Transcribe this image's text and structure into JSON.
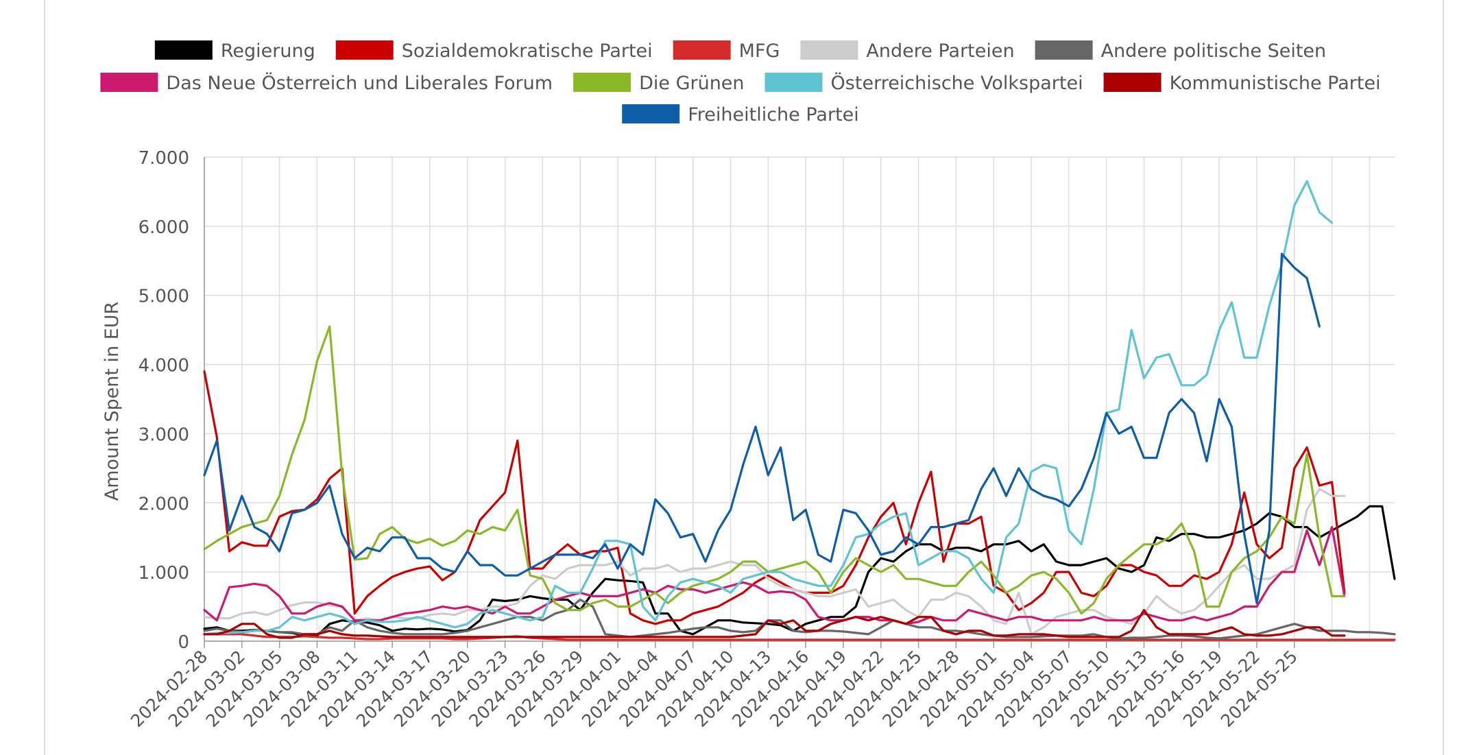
{
  "chart_data": {
    "type": "line",
    "ylabel": "Amount Spent in EUR",
    "ylim": [
      0,
      7000
    ],
    "yticks": [
      0,
      1000,
      2000,
      3000,
      4000,
      5000,
      6000,
      7000
    ],
    "ytick_labels": [
      "0",
      "1.000",
      "2.000",
      "3.000",
      "4.000",
      "5.000",
      "6.000",
      "7.000"
    ],
    "x_start": "2024-02-28",
    "xtick_labels": [
      "2024-02-28",
      "2024-03-02",
      "2024-03-05",
      "2024-03-08",
      "2024-03-11",
      "2024-03-14",
      "2024-03-17",
      "2024-03-20",
      "2024-03-23",
      "2024-03-26",
      "2024-03-29",
      "2024-04-01",
      "2024-04-04",
      "2024-04-07",
      "2024-04-10",
      "2024-04-13",
      "2024-04-16",
      "2024-04-19",
      "2024-04-22",
      "2024-04-25",
      "2024-04-28",
      "2024-05-01",
      "2024-05-04",
      "2024-05-07",
      "2024-05-10",
      "2024-05-13",
      "2024-05-16",
      "2024-05-19",
      "2024-05-22",
      "2024-05-25"
    ],
    "grid": true,
    "legend_position": "top",
    "series": [
      {
        "name": "Regierung",
        "color": "#000000",
        "values": [
          180,
          200,
          150,
          150,
          160,
          150,
          130,
          120,
          80,
          80,
          250,
          300,
          280,
          270,
          230,
          150,
          180,
          170,
          180,
          170,
          140,
          160,
          300,
          600,
          580,
          600,
          650,
          620,
          600,
          600,
          450,
          700,
          900,
          880,
          870,
          850,
          400,
          400,
          150,
          100,
          200,
          300,
          300,
          270,
          260,
          250,
          230,
          150,
          250,
          300,
          350,
          350,
          500,
          1000,
          1200,
          1150,
          1300,
          1400,
          1400,
          1300,
          1350,
          1350,
          1300,
          1400,
          1400,
          1450,
          1300,
          1400,
          1150,
          1100,
          1100,
          1150,
          1200,
          1050,
          1000,
          1100,
          1500,
          1450,
          1550,
          1550,
          1500,
          1500,
          1550,
          1600,
          1700,
          1850,
          1800,
          1650,
          1650,
          1500,
          1600,
          1700,
          1800,
          1950,
          1950,
          900
        ]
      },
      {
        "name": "Sozialdemokratische Partei",
        "color": "#cc0000",
        "values": [
          3900,
          2950,
          1300,
          1430,
          1380,
          1380,
          1800,
          1880,
          1900,
          2050,
          2350,
          2500,
          400,
          650,
          800,
          930,
          1000,
          1050,
          1080,
          880,
          1000,
          1300,
          1750,
          1950,
          2150,
          2900,
          1050,
          1050,
          1250,
          1400,
          1250,
          1300,
          1300,
          1350,
          400,
          300,
          250,
          300,
          300,
          400,
          450,
          500,
          600,
          700,
          850,
          950,
          850,
          750,
          700,
          700,
          700,
          800,
          1100,
          1500,
          1800,
          2000,
          1400,
          2000,
          2450,
          1150,
          1700,
          1700,
          1800,
          800,
          700,
          450,
          550,
          700,
          1000,
          1000,
          700,
          650,
          800,
          1100,
          1100,
          1000,
          950,
          800,
          800,
          950,
          900,
          1000,
          1400,
          2150,
          1400,
          1200,
          1350,
          2500,
          2800,
          2250,
          2300,
          700
        ]
      },
      {
        "name": "MFG",
        "color": "#d42a2a",
        "values": [
          100,
          100,
          100,
          100,
          80,
          60,
          60,
          60,
          70,
          60,
          50,
          50,
          40,
          30,
          30,
          40,
          40,
          40,
          40,
          40,
          30,
          30,
          40,
          50,
          60,
          70,
          50,
          40,
          30,
          20,
          20,
          20,
          20,
          20,
          20,
          20,
          20,
          20,
          20,
          20,
          20,
          20,
          20,
          20,
          20,
          20,
          20,
          20,
          20,
          20,
          20,
          20,
          20,
          20,
          20,
          20,
          20,
          20,
          20,
          20,
          20,
          20,
          20,
          20,
          20,
          20,
          20,
          20,
          20,
          20,
          20,
          20,
          20,
          20,
          20,
          20,
          20,
          20,
          20,
          20,
          20,
          20,
          20,
          20,
          20,
          20,
          20,
          20,
          20,
          20,
          20,
          20,
          20,
          20,
          20,
          20
        ]
      },
      {
        "name": "Andere Parteien",
        "color": "#cccccc",
        "values": [
          350,
          330,
          330,
          400,
          420,
          380,
          450,
          520,
          560,
          560,
          520,
          500,
          300,
          330,
          300,
          350,
          330,
          330,
          380,
          400,
          380,
          450,
          450,
          500,
          500,
          550,
          800,
          950,
          900,
          1050,
          1100,
          1100,
          1100,
          1150,
          950,
          1050,
          1050,
          1100,
          1000,
          1050,
          1050,
          1100,
          1150,
          1100,
          1100,
          900,
          800,
          750,
          700,
          650,
          650,
          700,
          750,
          500,
          550,
          600,
          450,
          350,
          600,
          600,
          700,
          650,
          500,
          300,
          250,
          700,
          100,
          200,
          350,
          400,
          450,
          450,
          350,
          300,
          250,
          400,
          650,
          500,
          400,
          450,
          600,
          800,
          1000,
          1100,
          900,
          900,
          1000,
          1100,
          1900,
          2200,
          2100,
          2100
        ]
      },
      {
        "name": "Andere politische Seiten",
        "color": "#666666",
        "values": [
          150,
          180,
          150,
          130,
          150,
          150,
          130,
          130,
          100,
          100,
          200,
          150,
          300,
          200,
          150,
          120,
          100,
          100,
          100,
          100,
          120,
          150,
          200,
          250,
          300,
          350,
          350,
          300,
          400,
          450,
          600,
          500,
          100,
          80,
          60,
          80,
          100,
          120,
          150,
          180,
          200,
          200,
          150,
          130,
          150,
          300,
          300,
          150,
          130,
          150,
          150,
          140,
          120,
          100,
          200,
          300,
          250,
          200,
          200,
          150,
          150,
          130,
          100,
          80,
          60,
          60,
          60,
          70,
          80,
          80,
          80,
          100,
          60,
          40,
          50,
          50,
          60,
          80,
          80,
          70,
          50,
          40,
          60,
          80,
          100,
          150,
          200,
          250,
          200,
          150,
          150,
          150,
          130,
          130,
          120,
          100
        ]
      },
      {
        "name": "Das Neue Österreich und Liberales Forum",
        "color": "#cc1a70",
        "values": [
          450,
          300,
          780,
          800,
          830,
          800,
          650,
          400,
          400,
          500,
          550,
          500,
          300,
          300,
          300,
          350,
          400,
          420,
          450,
          500,
          470,
          500,
          450,
          400,
          500,
          400,
          400,
          500,
          600,
          650,
          700,
          650,
          650,
          650,
          700,
          750,
          700,
          800,
          750,
          750,
          700,
          750,
          800,
          850,
          800,
          700,
          720,
          700,
          600,
          350,
          300,
          300,
          350,
          350,
          300,
          300,
          250,
          280,
          350,
          300,
          300,
          450,
          400,
          350,
          300,
          350,
          350,
          300,
          300,
          300,
          300,
          350,
          300,
          300,
          300,
          400,
          350,
          300,
          300,
          350,
          300,
          350,
          400,
          500,
          500,
          800,
          1000,
          1000,
          1600,
          1100,
          1650,
          650
        ]
      },
      {
        "name": "Die Grünen",
        "color": "#8ab829",
        "values": [
          1330,
          1450,
          1550,
          1650,
          1700,
          1750,
          2100,
          2700,
          3200,
          4050,
          4550,
          2400,
          1180,
          1200,
          1550,
          1650,
          1480,
          1420,
          1480,
          1380,
          1450,
          1600,
          1550,
          1650,
          1600,
          1900,
          950,
          900,
          550,
          450,
          450,
          550,
          600,
          500,
          500,
          600,
          700,
          550,
          700,
          800,
          850,
          900,
          1000,
          1150,
          1150,
          1000,
          1050,
          1100,
          1150,
          1000,
          700,
          1000,
          1200,
          1100,
          1000,
          1100,
          900,
          900,
          850,
          800,
          800,
          1000,
          1150,
          950,
          700,
          800,
          950,
          1000,
          900,
          700,
          400,
          550,
          900,
          1100,
          1250,
          1400,
          1400,
          1500,
          1700,
          1300,
          500,
          500,
          1000,
          1200,
          1300,
          1500,
          1800,
          1700,
          2700,
          1500,
          650,
          650
        ]
      },
      {
        "name": "Österreichische Volkspartei",
        "color": "#5ec4d4",
        "values": [
          100,
          120,
          120,
          130,
          150,
          150,
          200,
          350,
          300,
          350,
          400,
          350,
          250,
          300,
          280,
          280,
          300,
          350,
          300,
          250,
          200,
          250,
          400,
          450,
          400,
          350,
          300,
          350,
          800,
          700,
          700,
          1050,
          1450,
          1450,
          1400,
          500,
          300,
          650,
          850,
          900,
          850,
          800,
          700,
          900,
          950,
          1000,
          1000,
          900,
          850,
          800,
          800,
          1100,
          1500,
          1550,
          1700,
          1800,
          1850,
          1100,
          1200,
          1300,
          1300,
          1200,
          900,
          700,
          1500,
          1700,
          2450,
          2550,
          2500,
          1600,
          1400,
          2200,
          3300,
          3350,
          4500,
          3800,
          4100,
          4150,
          3700,
          3700,
          3850,
          4500,
          4900,
          4100,
          4100,
          4850,
          5450,
          6300,
          6650,
          6200,
          6050
        ]
      },
      {
        "name": "Kommunistische Partei",
        "color": "#aa0000",
        "values": [
          100,
          100,
          150,
          250,
          250,
          100,
          50,
          50,
          100,
          100,
          150,
          100,
          80,
          80,
          70,
          60,
          60,
          60,
          60,
          60,
          60,
          60,
          60,
          60,
          60,
          60,
          60,
          60,
          60,
          60,
          60,
          60,
          60,
          60,
          60,
          60,
          60,
          60,
          60,
          60,
          60,
          60,
          60,
          80,
          100,
          300,
          250,
          300,
          150,
          150,
          250,
          300,
          350,
          300,
          350,
          300,
          250,
          350,
          350,
          150,
          100,
          150,
          150,
          80,
          80,
          100,
          100,
          100,
          80,
          60,
          60,
          60,
          60,
          60,
          150,
          450,
          200,
          100,
          100,
          100,
          100,
          150,
          200,
          100,
          80,
          80,
          100,
          150,
          200,
          200,
          80,
          80
        ]
      },
      {
        "name": "Freiheitliche Partei",
        "color": "#0e5da8",
        "values": [
          2400,
          2900,
          1600,
          2100,
          1650,
          1550,
          1300,
          1850,
          1900,
          2000,
          2250,
          1550,
          1200,
          1350,
          1300,
          1500,
          1500,
          1200,
          1200,
          1050,
          1000,
          1300,
          1100,
          1100,
          950,
          950,
          1050,
          1150,
          1250,
          1250,
          1250,
          1200,
          1400,
          1050,
          1400,
          1250,
          2050,
          1850,
          1500,
          1550,
          1150,
          1600,
          1900,
          2550,
          3100,
          2400,
          2800,
          1750,
          1900,
          1250,
          1150,
          1900,
          1850,
          1600,
          1250,
          1300,
          1500,
          1400,
          1650,
          1650,
          1700,
          1750,
          2200,
          2500,
          2100,
          2500,
          2200,
          2100,
          2050,
          1950,
          2200,
          2650,
          3300,
          3000,
          3100,
          2650,
          2650,
          3300,
          3500,
          3300,
          2600,
          3500,
          3100,
          1550,
          550,
          1600,
          5600,
          5400,
          5250,
          4550
        ]
      }
    ]
  }
}
